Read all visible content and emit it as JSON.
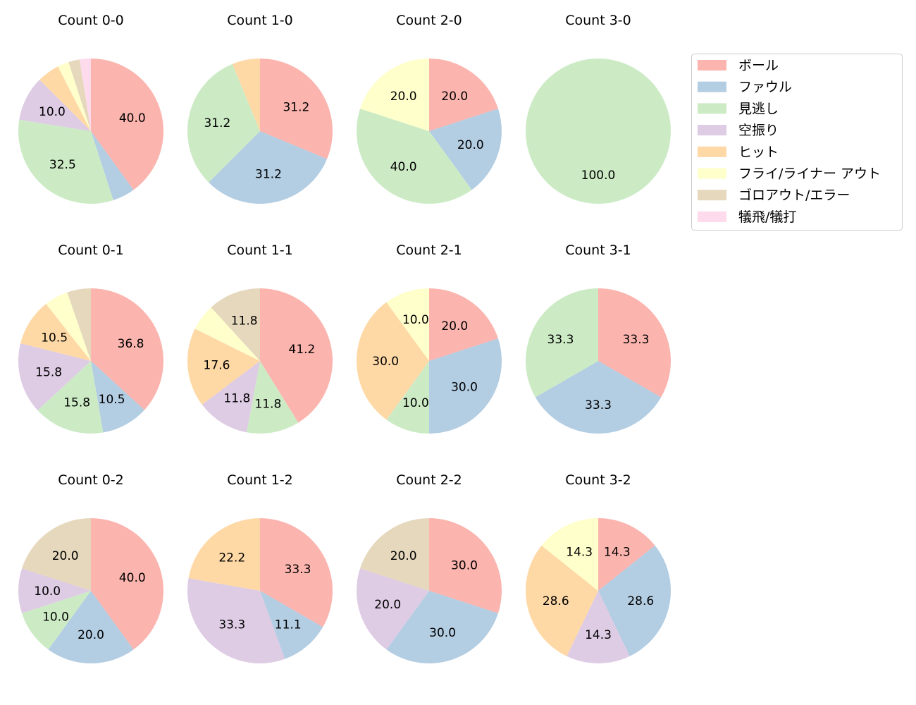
{
  "chart_data": {
    "type": "pie",
    "start_angle": 90,
    "direction": "clockwise",
    "label_format": "percent, one decimal, small slices unlabeled",
    "colors": [
      "#fbb4ae",
      "#b3cde3",
      "#ccebc5",
      "#decbe4",
      "#fed9a6",
      "#ffffcc",
      "#e5d8bd",
      "#fddaec"
    ],
    "legend": {
      "placement": "right",
      "entries": [
        "ボール",
        "ファウル",
        "見逃し",
        "空振り",
        "ヒット",
        "フライ/ライナー アウト",
        "ゴロアウト/エラー",
        "犠飛/犠打"
      ]
    },
    "charts": [
      {
        "title": "Count 0-0",
        "values": [
          40.0,
          5.0,
          32.5,
          10.0,
          5.0,
          2.5,
          2.5,
          2.5
        ]
      },
      {
        "title": "Count 1-0",
        "values": [
          31.2,
          31.2,
          31.2,
          0,
          6.2,
          0,
          0,
          0
        ]
      },
      {
        "title": "Count 2-0",
        "values": [
          20.0,
          20.0,
          40.0,
          0,
          0,
          20.0,
          0,
          0
        ]
      },
      {
        "title": "Count 3-0",
        "values": [
          0,
          0,
          100.0,
          0,
          0,
          0,
          0,
          0
        ]
      },
      {
        "title": "Count 0-1",
        "values": [
          36.8,
          10.5,
          15.8,
          15.8,
          10.5,
          5.3,
          5.3,
          0
        ]
      },
      {
        "title": "Count 1-1",
        "values": [
          41.2,
          0,
          11.8,
          11.8,
          17.6,
          5.9,
          11.8,
          0
        ]
      },
      {
        "title": "Count 2-1",
        "values": [
          20.0,
          30.0,
          10.0,
          0,
          30.0,
          10.0,
          0,
          0
        ]
      },
      {
        "title": "Count 3-1",
        "values": [
          33.3,
          33.3,
          33.3,
          0,
          0,
          0,
          0,
          0
        ]
      },
      {
        "title": "Count 0-2",
        "values": [
          40.0,
          20.0,
          10.0,
          10.0,
          0,
          0,
          20.0,
          0
        ]
      },
      {
        "title": "Count 1-2",
        "values": [
          33.3,
          11.1,
          0,
          33.3,
          22.2,
          0,
          0,
          0
        ]
      },
      {
        "title": "Count 2-2",
        "values": [
          30.0,
          30.0,
          0,
          20.0,
          0,
          0,
          20.0,
          0
        ]
      },
      {
        "title": "Count 3-2",
        "values": [
          14.3,
          28.6,
          0,
          14.3,
          28.6,
          14.3,
          0,
          0
        ]
      }
    ]
  }
}
